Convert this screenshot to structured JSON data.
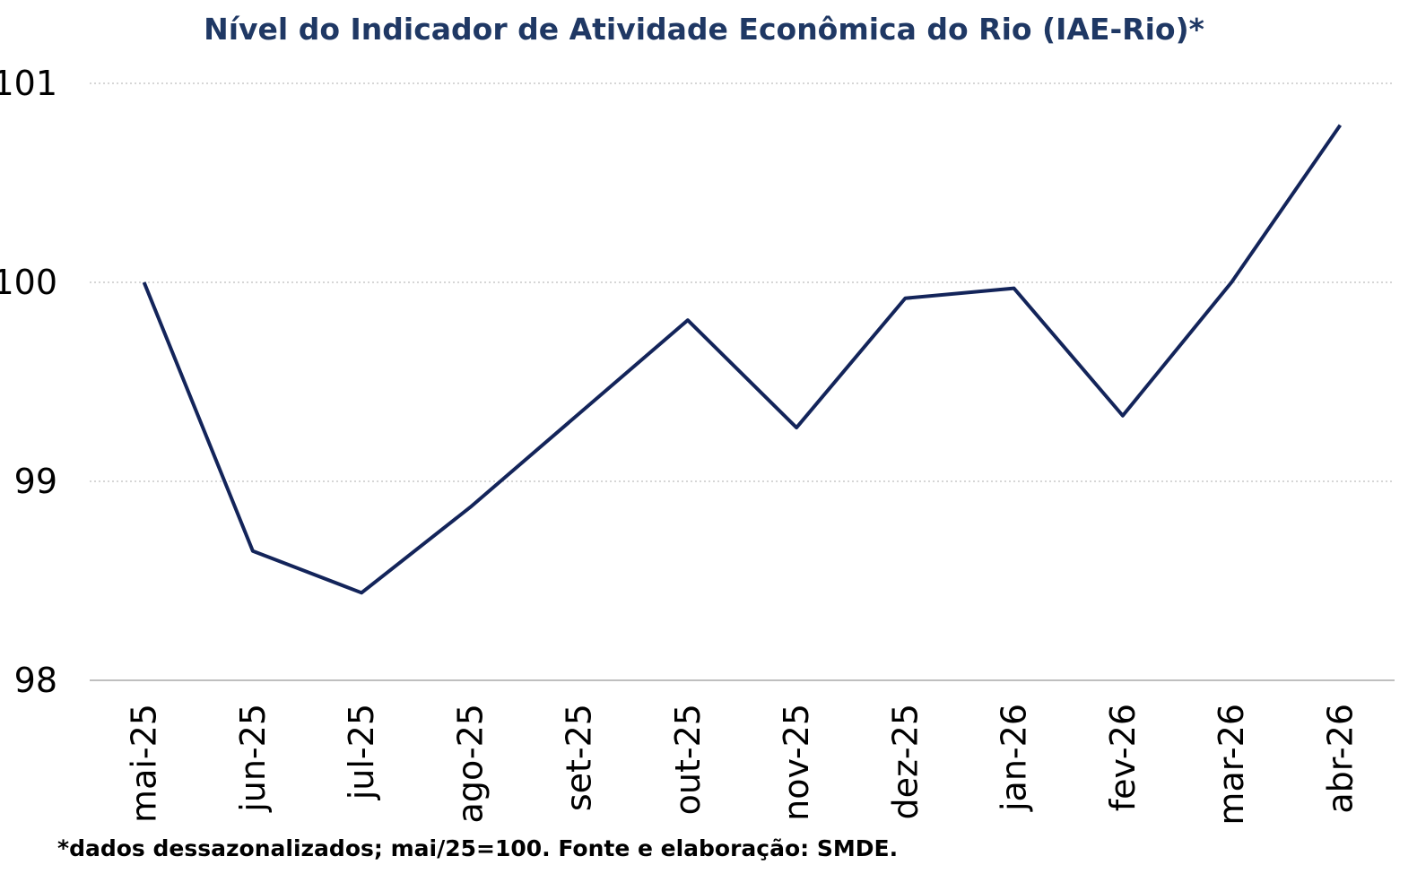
{
  "chart_data": {
    "type": "line",
    "title": "Nível do Indicador de Atividade Econômica do Rio (IAE-Rio)*",
    "footnote": "*dados dessazonalizados; mai/25=100. Fonte e elaboração: SMDE.",
    "categories": [
      "mai-25",
      "jun-25",
      "jul-25",
      "ago-25",
      "set-25",
      "out-25",
      "nov-25",
      "dez-25",
      "jan-26",
      "fev-26",
      "mar-26",
      "abr-26"
    ],
    "values": [
      100,
      98.65,
      98.44,
      98.87,
      99.34,
      99.81,
      99.27,
      99.92,
      99.97,
      99.33,
      100.0,
      100.79
    ],
    "color": "#13245a",
    "ylim": [
      98,
      101
    ],
    "yticks": [
      98,
      99,
      100,
      101
    ],
    "grid": true
  }
}
